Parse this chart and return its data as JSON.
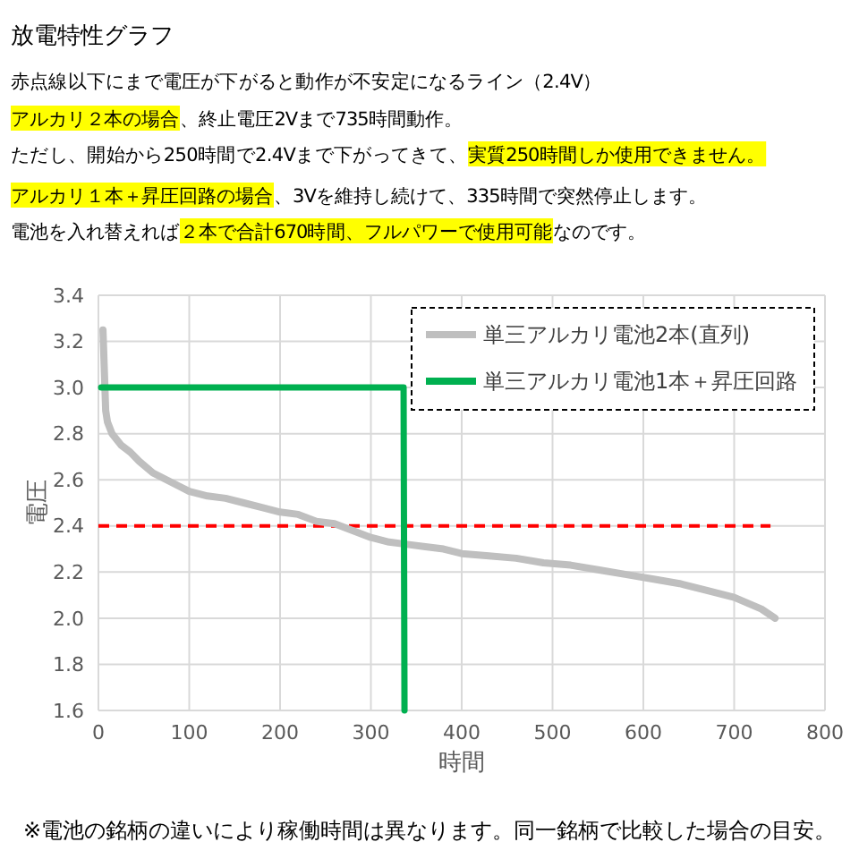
{
  "chart_data": {
    "type": "line",
    "title": "放電特性グラフ",
    "annotations": [
      "赤点線以下にまで電圧が下がると動作が不安定になるライン（2.4V）",
      "アルカリ２本の場合",
      "、終止電圧2Vまで735時間動作。",
      "ただし、開始から250時間で2.4Vまで下がってきて、",
      "実質250時間しか使用できません。",
      "アルカリ１本＋昇圧回路の場合",
      "、3Vを維持し続けて、335時間で突然停止します。",
      "電池を入れ替えれば",
      "２本で合計670時間、フルパワーで使用可能",
      "なのです。",
      "※電池の銘柄の違いにより稼働時間は異なります。同一銘柄で比較した場合の目安。"
    ],
    "xlabel": "時間",
    "ylabel": "電圧",
    "xlim": [
      0,
      800
    ],
    "xticks": [
      0,
      100,
      200,
      300,
      400,
      500,
      600,
      700,
      800
    ],
    "ylim": [
      1.6,
      3.4
    ],
    "yticks": [
      {
        "value": 1.6,
        "label": "1.6"
      },
      {
        "value": 1.8,
        "label": "1.8"
      },
      {
        "value": 2.0,
        "label": "2.0"
      },
      {
        "value": 2.2,
        "label": "2.2"
      },
      {
        "value": 2.4,
        "label": "2.4"
      },
      {
        "value": 2.6,
        "label": "2.6"
      },
      {
        "value": 2.8,
        "label": "2.8"
      },
      {
        "value": 3.0,
        "label": "3.0"
      },
      {
        "value": 3.2,
        "label": "3.2"
      },
      {
        "value": 3.4,
        "label": "3.4"
      }
    ],
    "grid": true,
    "legend": "top right",
    "marker": "none",
    "ref_lines": [
      {
        "axis": "y",
        "value": 2.4,
        "color": "#ff0000",
        "line_style": "dashed"
      }
    ],
    "series": [
      {
        "name": "単三アルカリ電池2本(直列)",
        "color": "#bfbfbf",
        "x": [
          5,
          8,
          10,
          15,
          25,
          35,
          45,
          60,
          75,
          90,
          100,
          120,
          140,
          160,
          180,
          200,
          220,
          240,
          260,
          280,
          300,
          320,
          340,
          360,
          380,
          400,
          430,
          460,
          490,
          520,
          550,
          580,
          610,
          640,
          670,
          700,
          730,
          745
        ],
        "values": [
          3.25,
          2.9,
          2.85,
          2.8,
          2.75,
          2.72,
          2.68,
          2.63,
          2.6,
          2.57,
          2.55,
          2.53,
          2.52,
          2.5,
          2.48,
          2.46,
          2.45,
          2.42,
          2.41,
          2.38,
          2.35,
          2.33,
          2.32,
          2.31,
          2.3,
          2.28,
          2.27,
          2.26,
          2.24,
          2.23,
          2.21,
          2.19,
          2.17,
          2.15,
          2.12,
          2.09,
          2.04,
          2.0
        ]
      },
      {
        "name": "単三アルカリ電池1本＋昇圧回路",
        "color": "#00b050",
        "x": [
          3,
          336,
          337
        ],
        "values": [
          3.0,
          3.0,
          1.6
        ]
      }
    ]
  }
}
